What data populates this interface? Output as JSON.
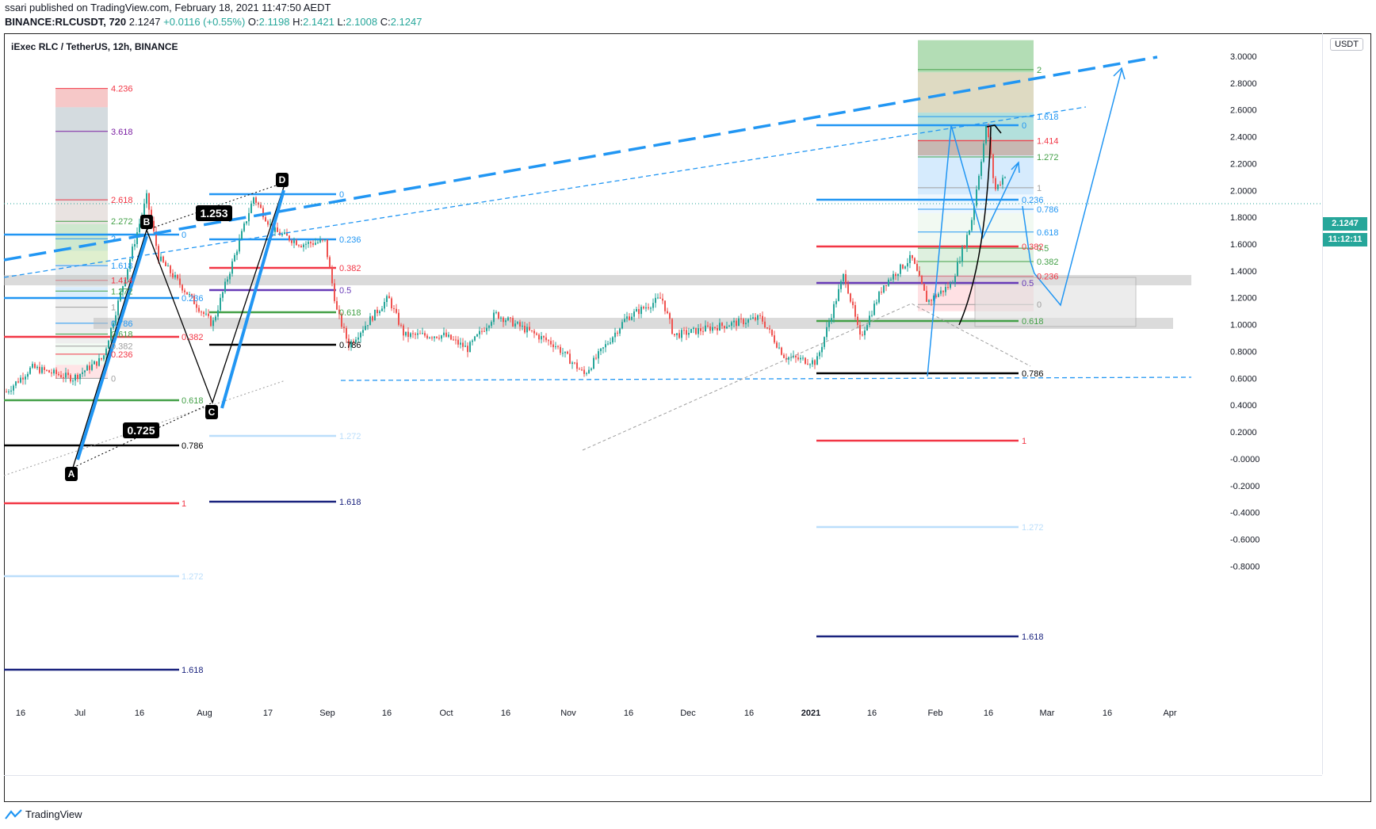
{
  "header": {
    "publisher_line": "ssari published on TradingView.com, February 18, 2021 11:47:50 AEDT",
    "symbol_line": "BINANCE:RLCUSDT, 720",
    "last": "2.1247",
    "change": "+0.0116 (+0.55%)",
    "o_label": "O:",
    "o_value": "2.1198",
    "h_label": "H:",
    "h_value": "2.1421",
    "l_label": "L:",
    "l_value": "2.1008",
    "c_label": "C:",
    "c_value": "2.1247"
  },
  "pair_title": "iExec RLC / TetherUS, 12h, BINANCE",
  "currency": "USDT",
  "price_tags": {
    "last_price": "2.1247",
    "countdown": "11:12:11"
  },
  "price_axis": [
    "3.0000",
    "2.8000",
    "2.6000",
    "2.4000",
    "2.2000",
    "2.0000",
    "1.8000",
    "1.6000",
    "1.4000",
    "1.2000",
    "1.0000",
    "0.8000",
    "0.6000",
    "0.4000",
    "0.2000",
    "-0.0000",
    "-0.2000",
    "-0.4000",
    "-0.6000",
    "-0.8000"
  ],
  "time_axis": [
    "16",
    "Jul",
    "16",
    "Aug",
    "17",
    "Sep",
    "16",
    "Oct",
    "16",
    "Nov",
    "16",
    "Dec",
    "16",
    "2021",
    "16",
    "Feb",
    "16",
    "Mar",
    "16",
    "Apr"
  ],
  "pattern_points": {
    "a": "A",
    "b": "B",
    "c": "C",
    "d": "D"
  },
  "ratio_boxes": {
    "r1": "1.253",
    "r2": "0.725"
  },
  "fib_left_box": [
    "4.236",
    "3.618",
    "2.618",
    "2.272",
    "2",
    "1.618",
    "1.414",
    "1.272",
    "1",
    "0.786",
    "0.618",
    "0.382",
    "0.236",
    "0"
  ],
  "fib_retrace_left": [
    "0",
    "0.236",
    "0.382",
    "0.618",
    "0.786",
    "1",
    "1.272",
    "1.618"
  ],
  "fib_retrace_mid": [
    "0",
    "0.236",
    "0.382",
    "0.5",
    "0.618",
    "0.786",
    "1.272",
    "1.618"
  ],
  "fib_right_box": [
    "2",
    "1.618",
    "1.414",
    "1.272",
    "1",
    "0.786",
    "0.618",
    "0.5",
    "0.382",
    "0.236",
    "0"
  ],
  "fib_retrace_right": [
    "0",
    "0.236",
    "0.382",
    "0.5",
    "0.618",
    "0.786",
    "1",
    "1.272",
    "1.618"
  ],
  "footer": {
    "brand": "TradingView"
  },
  "colors": {
    "up": "#26a69a",
    "down": "#ef5350",
    "trend": "#2196f3",
    "fib_red": "#f23645",
    "fib_green": "#43a047",
    "fib_purple": "#673ab7",
    "fib_navy": "#1a237e"
  }
}
